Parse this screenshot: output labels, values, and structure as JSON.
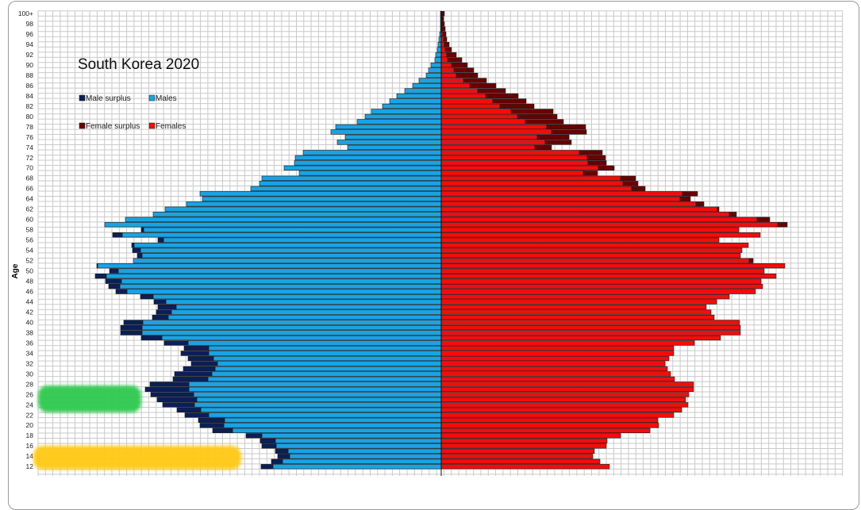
{
  "chart_data": {
    "type": "bar",
    "orientation": "horizontal",
    "subtype": "population-pyramid",
    "title": "South Korea 2020",
    "ylabel": "Age",
    "xlabel": "",
    "grid": true,
    "legend_placement": "top-left",
    "legend": [
      {
        "label": "Male surplus",
        "color": "#0b1f57"
      },
      {
        "label": "Males",
        "color": "#1aa3e3"
      },
      {
        "label": "Female surplus",
        "color": "#680000"
      },
      {
        "label": "Females",
        "color": "#f20d0d"
      }
    ],
    "y_tick_labels": [
      "100+",
      "98",
      "96",
      "94",
      "92",
      "90",
      "88",
      "86",
      "84",
      "82",
      "80",
      "78",
      "76",
      "74",
      "72",
      "70",
      "68",
      "66",
      "64",
      "62",
      "60",
      "58",
      "56",
      "54",
      "52",
      "50",
      "48",
      "46",
      "44",
      "42",
      "40",
      "38",
      "36",
      "34",
      "32",
      "30",
      "28",
      "26",
      "24",
      "22",
      "20",
      "18",
      "16",
      "14",
      "12"
    ],
    "ages": [
      100,
      99,
      98,
      97,
      96,
      95,
      94,
      93,
      92,
      91,
      90,
      89,
      88,
      87,
      86,
      85,
      84,
      83,
      82,
      81,
      80,
      79,
      78,
      77,
      76,
      75,
      74,
      73,
      72,
      71,
      70,
      69,
      68,
      67,
      66,
      65,
      64,
      63,
      62,
      61,
      60,
      59,
      58,
      57,
      56,
      55,
      54,
      53,
      52,
      51,
      50,
      49,
      48,
      47,
      46,
      45,
      44,
      43,
      42,
      41,
      40,
      39,
      38,
      37,
      36,
      35,
      34,
      33,
      32,
      31,
      30,
      29,
      28,
      27,
      26,
      25,
      24,
      23,
      22,
      21,
      20,
      19,
      18,
      17,
      16,
      15,
      14,
      13,
      12
    ],
    "series": [
      {
        "name": "Males",
        "values": [
          1,
          1,
          1,
          1,
          2,
          3,
          4,
          5,
          7,
          8,
          13,
          16,
          19,
          28,
          36,
          46,
          56,
          65,
          74,
          88,
          96,
          106,
          133,
          139,
          121,
          131,
          118,
          174,
          184,
          185,
          198,
          179,
          226,
          229,
          240,
          304,
          301,
          321,
          348,
          363,
          398,
          424,
          378,
          414,
          357,
          390,
          389,
          383,
          388,
          434,
          418,
          436,
          423,
          419,
          410,
          379,
          362,
          357,
          359,
          364,
          400,
          404,
          404,
          378,
          349,
          324,
          328,
          319,
          315,
          325,
          336,
          338,
          367,
          373,
          366,
          358,
          351,
          333,
          323,
          306,
          304,
          288,
          246,
          228,
          226,
          209,
          206,
          214,
          227
        ]
      },
      {
        "name": "Females",
        "values": [
          4,
          3,
          4,
          5,
          6,
          7,
          10,
          13,
          19,
          26,
          33,
          41,
          46,
          57,
          69,
          81,
          97,
          107,
          117,
          141,
          146,
          154,
          182,
          183,
          161,
          164,
          139,
          203,
          207,
          208,
          218,
          197,
          245,
          248,
          257,
          323,
          314,
          331,
          350,
          372,
          414,
          436,
          375,
          402,
          350,
          387,
          379,
          377,
          393,
          433,
          407,
          422,
          403,
          405,
          396,
          363,
          347,
          334,
          340,
          344,
          376,
          377,
          377,
          352,
          319,
          293,
          293,
          287,
          282,
          285,
          289,
          294,
          318,
          318,
          312,
          308,
          311,
          303,
          293,
          273,
          274,
          263,
          226,
          209,
          208,
          193,
          191,
          200,
          212
        ]
      }
    ]
  },
  "overlays": {
    "highlight_1_color": "#2fc94f",
    "highlight_2_color": "#ffc914"
  }
}
